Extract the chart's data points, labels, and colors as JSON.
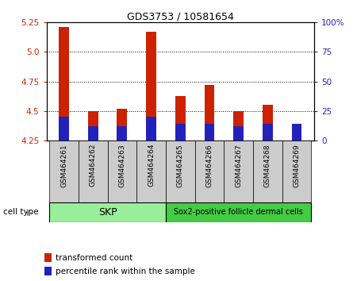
{
  "title": "GDS3753 / 10581654",
  "samples": [
    "GSM464261",
    "GSM464262",
    "GSM464263",
    "GSM464264",
    "GSM464265",
    "GSM464266",
    "GSM464267",
    "GSM464268",
    "GSM464269"
  ],
  "transformed_count": [
    5.21,
    4.5,
    4.52,
    5.17,
    4.63,
    4.72,
    4.5,
    4.55,
    4.38
  ],
  "percentile_rank_pct": [
    20,
    12,
    12,
    20,
    14,
    14,
    12,
    14,
    14
  ],
  "baseline": 4.25,
  "ylim": [
    4.25,
    5.25
  ],
  "y_ticks": [
    4.25,
    4.5,
    4.75,
    5.0,
    5.25
  ],
  "right_ylim": [
    0,
    100
  ],
  "right_yticks": [
    0,
    25,
    50,
    75,
    100
  ],
  "right_yticklabels": [
    "0",
    "25",
    "50",
    "75",
    "100%"
  ],
  "bar_color": "#cc2200",
  "blue_color": "#2222bb",
  "bar_width": 0.35,
  "blue_bar_width": 0.35,
  "cell_types": [
    {
      "label": "SKP",
      "n_samples": 4,
      "color": "#99ee99"
    },
    {
      "label": "Sox2-positive follicle dermal cells",
      "n_samples": 5,
      "color": "#44cc44"
    }
  ],
  "legend_items": [
    {
      "label": "transformed count",
      "color": "#cc2200"
    },
    {
      "label": "percentile rank within the sample",
      "color": "#2222bb"
    }
  ],
  "cell_type_label": "cell type",
  "bg_color": "#ffffff",
  "tick_label_color_left": "#cc2200",
  "tick_label_color_right": "#2222bb",
  "tick_box_color": "#cccccc",
  "grid_color": "#000000",
  "title_fontsize": 9,
  "axis_fontsize": 7.5,
  "sample_fontsize": 6.5
}
